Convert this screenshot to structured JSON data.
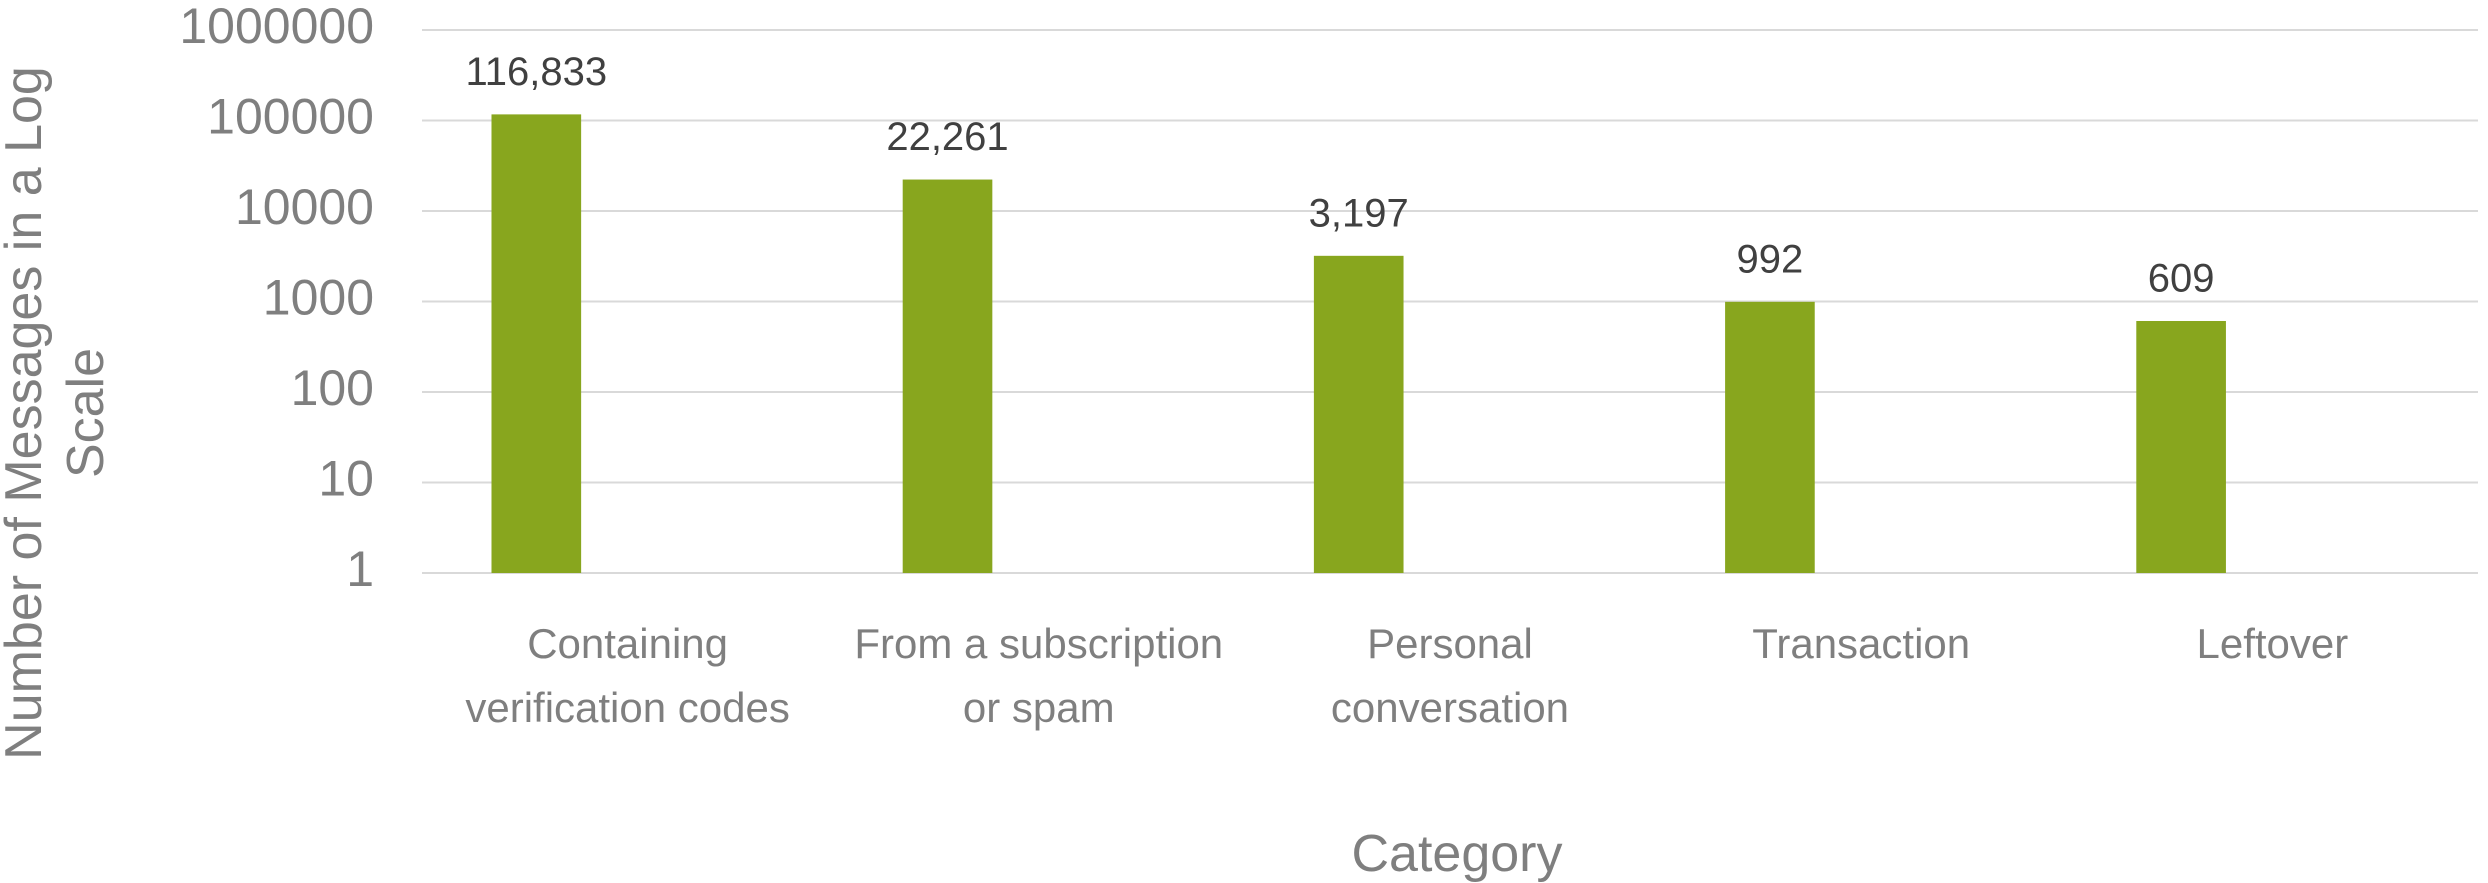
{
  "chart_data": {
    "type": "bar",
    "log_scale": true,
    "grid": true,
    "color": "#88a61e",
    "ylabel": "Number of Messages in a Log Scale",
    "xlabel": "Category",
    "categories": [
      "Containing verification codes",
      "From a subscription or spam",
      "Personal conversation",
      "Transaction",
      "Leftover"
    ],
    "values": [
      116833,
      22261,
      3197,
      992,
      609
    ],
    "value_labels": [
      "116,833",
      "22,261",
      "3,197",
      "992",
      "609"
    ],
    "ylim": [
      1,
      1000000
    ],
    "yticks": [
      1,
      10,
      100,
      1000,
      10000,
      100000,
      1000000
    ]
  }
}
